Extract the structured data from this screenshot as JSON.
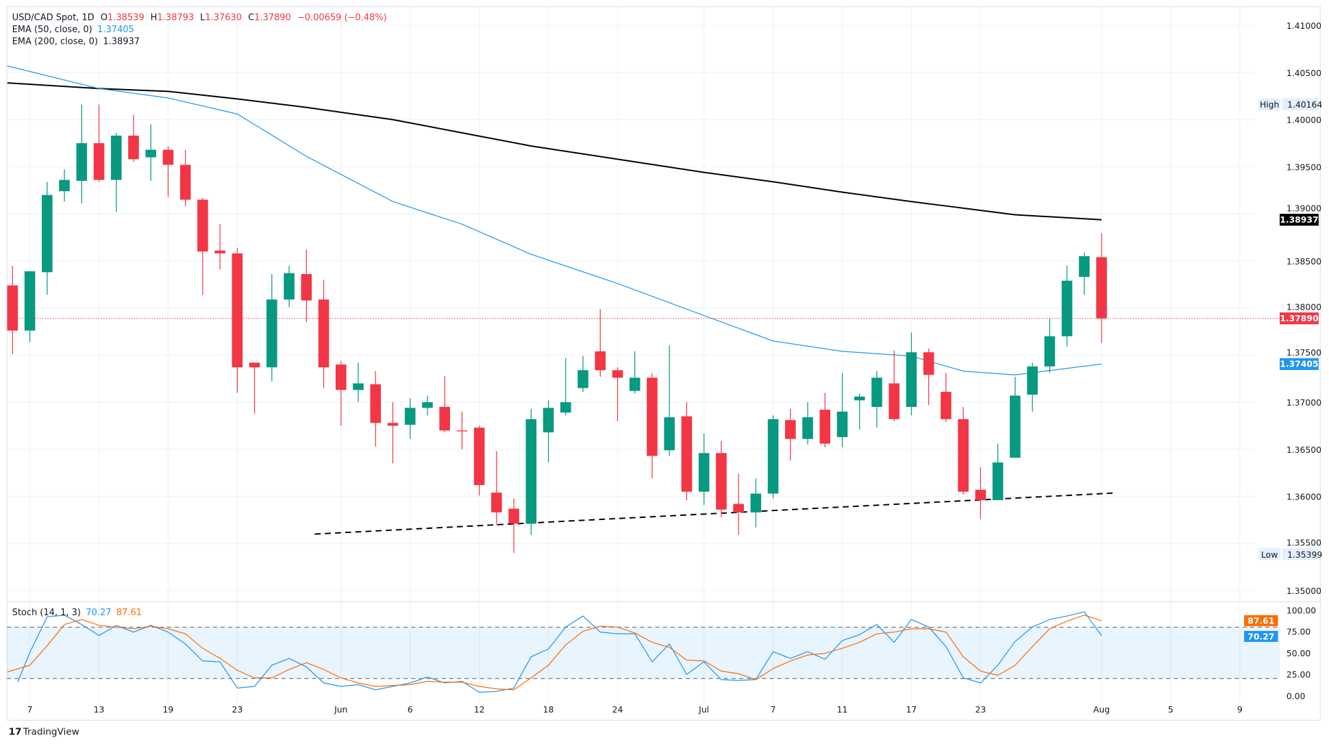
{
  "legend": {
    "symbol": "USD/CAD Spot, 1D",
    "o_label": "O",
    "o": "1.38539",
    "h_label": "H",
    "h": "1.38793",
    "l_label": "L",
    "l": "1.37630",
    "c_label": "C",
    "c": "1.37890",
    "change": "−0.00659 (−0.48%)",
    "ema50_label": "EMA (50, close, 0)",
    "ema50": "1.37405",
    "ema200_label": "EMA (200, close, 0)",
    "ema200": "1.38937",
    "stoch_label": "Stoch (14, 1, 3)",
    "stoch_k": "70.27",
    "stoch_d": "87.61"
  },
  "markers": {
    "high_label": "High",
    "high": "1.40164",
    "low_label": "Low",
    "low": "1.35399",
    "last_price": "1.37890",
    "ema200_tag": "1.38937",
    "ema50_tag": "1.37405",
    "stoch_d_tag": "87.61",
    "stoch_k_tag": "70.27"
  },
  "colors": {
    "up": "#089981",
    "down": "#f23645",
    "ema50": "#2196f3",
    "ema200": "#000000",
    "stoch_k": "#2196f3",
    "stoch_d": "#ff6d00"
  },
  "branding": {
    "logo": "TradingView"
  },
  "chart_data": [
    {
      "type": "candlestick",
      "title": "USD/CAD Spot, 1D",
      "ylim": [
        1.35,
        1.41
      ],
      "yticks": [
        "1.41000",
        "1.40500",
        "1.40000",
        "1.39500",
        "1.39000",
        "1.38500",
        "1.38000",
        "1.37500",
        "1.37000",
        "1.36500",
        "1.36000",
        "1.35500",
        "1.35000"
      ],
      "xticks": [
        "7",
        "13",
        "19",
        "23",
        "Jun",
        "6",
        "12",
        "18",
        "24",
        "Jul",
        "7",
        "11",
        "17",
        "23",
        "Aug",
        "5",
        "9"
      ],
      "grid": true,
      "candles_columns": [
        "date",
        "open",
        "high",
        "low",
        "close"
      ],
      "candles": [
        [
          "May 6",
          1.3824,
          1.3845,
          1.3751,
          1.3776
        ],
        [
          "May 7",
          1.3776,
          1.3839,
          1.3764,
          1.3839
        ],
        [
          "May 8",
          1.3838,
          1.3934,
          1.3814,
          1.392
        ],
        [
          "May 9",
          1.3924,
          1.3947,
          1.3913,
          1.3936
        ],
        [
          "May 12",
          1.3935,
          1.4016,
          1.3911,
          1.3975
        ],
        [
          "May 13",
          1.3975,
          1.4016,
          1.3934,
          1.3936
        ],
        [
          "May 14",
          1.3936,
          1.3986,
          1.3902,
          1.3983
        ],
        [
          "May 15",
          1.3983,
          1.4005,
          1.3955,
          1.3958
        ],
        [
          "May 16",
          1.396,
          1.3995,
          1.3935,
          1.3968
        ],
        [
          "May 19",
          1.3968,
          1.3972,
          1.3918,
          1.3952
        ],
        [
          "May 20",
          1.3952,
          1.3968,
          1.3908,
          1.3915
        ],
        [
          "May 21",
          1.3915,
          1.3917,
          1.3814,
          1.386
        ],
        [
          "May 22",
          1.3861,
          1.3889,
          1.3841,
          1.3858
        ],
        [
          "May 23",
          1.3858,
          1.3864,
          1.371,
          1.3737
        ],
        [
          "May 26",
          1.3742,
          1.3742,
          1.3688,
          1.3737
        ],
        [
          "May 27",
          1.3737,
          1.3836,
          1.3722,
          1.3809
        ],
        [
          "May 28",
          1.3809,
          1.3845,
          1.3801,
          1.3837
        ],
        [
          "May 29",
          1.3836,
          1.3862,
          1.3785,
          1.3808
        ],
        [
          "May 30",
          1.3809,
          1.383,
          1.3715,
          1.3737
        ],
        [
          "Jun 2",
          1.374,
          1.3744,
          1.3675,
          1.3713
        ],
        [
          "Jun 3",
          1.3713,
          1.3742,
          1.37,
          1.372
        ],
        [
          "Jun 4",
          1.3719,
          1.3733,
          1.3653,
          1.3678
        ],
        [
          "Jun 5",
          1.3678,
          1.37,
          1.3635,
          1.3675
        ],
        [
          "Jun 6",
          1.3676,
          1.3704,
          1.3661,
          1.3694
        ],
        [
          "Jun 9",
          1.3694,
          1.3707,
          1.3686,
          1.37
        ],
        [
          "Jun 10",
          1.3695,
          1.3728,
          1.3668,
          1.367
        ],
        [
          "Jun 11",
          1.367,
          1.369,
          1.365,
          1.3669
        ],
        [
          "Jun 12",
          1.3673,
          1.3675,
          1.3601,
          1.3612
        ],
        [
          "Jun 13",
          1.3604,
          1.3648,
          1.3569,
          1.3583
        ],
        [
          "Jun 16",
          1.3587,
          1.3598,
          1.354,
          1.3571
        ],
        [
          "Jun 17",
          1.3571,
          1.3693,
          1.3559,
          1.3682
        ],
        [
          "Jun 18",
          1.3668,
          1.3702,
          1.3636,
          1.3694
        ],
        [
          "Jun 19",
          1.3689,
          1.3747,
          1.3686,
          1.37
        ],
        [
          "Jun 20",
          1.3715,
          1.3749,
          1.3711,
          1.3734
        ],
        [
          "Jun 23",
          1.3754,
          1.3799,
          1.3727,
          1.3734
        ],
        [
          "Jun 24",
          1.3734,
          1.3737,
          1.368,
          1.3726
        ],
        [
          "Jun 25",
          1.3712,
          1.3754,
          1.3709,
          1.3726
        ],
        [
          "Jun 26",
          1.3726,
          1.3731,
          1.3619,
          1.3643
        ],
        [
          "Jun 27",
          1.3649,
          1.376,
          1.3643,
          1.3684
        ],
        [
          "Jun 30",
          1.3685,
          1.37,
          1.3596,
          1.3605
        ],
        [
          "Jul 1",
          1.3605,
          1.3667,
          1.3591,
          1.3646
        ],
        [
          "Jul 2",
          1.3646,
          1.3659,
          1.3578,
          1.3586
        ],
        [
          "Jul 3",
          1.3592,
          1.3624,
          1.3559,
          1.3583
        ],
        [
          "Jul 4",
          1.3583,
          1.3619,
          1.3567,
          1.3603
        ],
        [
          "Jul 7",
          1.3603,
          1.3686,
          1.3598,
          1.3682
        ],
        [
          "Jul 8",
          1.3681,
          1.3693,
          1.3638,
          1.3661
        ],
        [
          "Jul 9",
          1.3661,
          1.37,
          1.3655,
          1.3684
        ],
        [
          "Jul 10",
          1.3692,
          1.371,
          1.3652,
          1.3656
        ],
        [
          "Jul 11",
          1.3663,
          1.3731,
          1.3652,
          1.369
        ],
        [
          "Jul 14",
          1.3702,
          1.3709,
          1.3671,
          1.3706
        ],
        [
          "Jul 15",
          1.3695,
          1.3733,
          1.3673,
          1.3726
        ],
        [
          "Jul 16",
          1.372,
          1.3755,
          1.368,
          1.3682
        ],
        [
          "Jul 17",
          1.3695,
          1.3774,
          1.3686,
          1.3753
        ],
        [
          "Jul 18",
          1.3753,
          1.3757,
          1.3697,
          1.3729
        ],
        [
          "Jul 21",
          1.3711,
          1.3731,
          1.3679,
          1.3682
        ],
        [
          "Jul 22",
          1.3682,
          1.3695,
          1.3602,
          1.3605
        ],
        [
          "Jul 23",
          1.3607,
          1.3631,
          1.3576,
          1.3596
        ],
        [
          "Jul 24",
          1.3596,
          1.3656,
          1.3596,
          1.3636
        ],
        [
          "Jul 25",
          1.3641,
          1.3727,
          1.3641,
          1.3707
        ],
        [
          "Jul 28",
          1.3708,
          1.3742,
          1.369,
          1.3738
        ],
        [
          "Jul 29",
          1.3738,
          1.3789,
          1.3731,
          1.377
        ],
        [
          "Jul 30",
          1.377,
          1.3845,
          1.3759,
          1.3829
        ],
        [
          "Jul 31",
          1.3833,
          1.3859,
          1.3814,
          1.3855
        ],
        [
          "Aug 1",
          1.38539,
          1.38793,
          1.3763,
          1.3789
        ]
      ],
      "ema50": [
        [
          "May 6",
          1.4057
        ],
        [
          "May 13",
          1.4033
        ],
        [
          "May 19",
          1.4023
        ],
        [
          "May 23",
          1.4006
        ],
        [
          "May 29",
          1.3961
        ],
        [
          "Jun 5",
          1.3913
        ],
        [
          "Jun 11",
          1.3889
        ],
        [
          "Jun 17",
          1.3857
        ],
        [
          "Jun 24",
          1.3826
        ],
        [
          "Jul 1",
          1.3792
        ],
        [
          "Jul 7",
          1.3765
        ],
        [
          "Jul 11",
          1.3754
        ],
        [
          "Jul 17",
          1.3749
        ],
        [
          "Jul 22",
          1.3733
        ],
        [
          "Jul 25",
          1.3729
        ],
        [
          "Aug 1",
          1.37405
        ]
      ],
      "ema200": [
        [
          "May 6",
          1.4039
        ],
        [
          "May 13",
          1.4033
        ],
        [
          "May 19",
          1.403
        ],
        [
          "May 23",
          1.4022
        ],
        [
          "May 29",
          1.4013
        ],
        [
          "Jun 5",
          1.4
        ],
        [
          "Jun 11",
          1.3986
        ],
        [
          "Jun 17",
          1.3972
        ],
        [
          "Jun 24",
          1.3958
        ],
        [
          "Jul 1",
          1.3944
        ],
        [
          "Jul 7",
          1.3934
        ],
        [
          "Jul 11",
          1.3923
        ],
        [
          "Jul 17",
          1.3913
        ],
        [
          "Jul 22",
          1.3906
        ],
        [
          "Jul 25",
          1.3899
        ],
        [
          "Aug 1",
          1.38937
        ]
      ],
      "trendline": [
        [
          "May 29",
          1.356
        ],
        [
          "Aug 1",
          1.3603
        ]
      ],
      "last_price_line": 1.3789
    },
    {
      "type": "line",
      "title": "Stoch (14, 1, 3)",
      "ylim": [
        0,
        100
      ],
      "yticks": [
        "100.00",
        "75.00",
        "50.00",
        "25.00",
        "0.00"
      ],
      "band": [
        20,
        80
      ],
      "series": [
        {
          "name": "%K",
          "values": [
            15.8,
            50.5,
            92.1,
            94.1,
            83.2,
            70.3,
            82.2,
            74.3,
            82.2,
            74.3,
            60.4,
            40.6,
            39.6,
            8.9,
            10.9,
            35.6,
            43.6,
            33.7,
            14.9,
            10.9,
            12.9,
            6.9,
            10.9,
            14.9,
            21.8,
            14.9,
            16.8,
            4.0,
            5.0,
            8.9,
            45.5,
            54.5,
            80.2,
            93.1,
            74.3,
            72.3,
            72.3,
            39.6,
            60.4,
            24.8,
            39.6,
            18.8,
            17.8,
            18.8,
            51.5,
            43.6,
            51.5,
            42.6,
            64.4,
            71.3,
            83.2,
            62.4,
            89.1,
            80.2,
            57.4,
            20.8,
            14.9,
            35.6,
            63.4,
            80.2,
            89.1,
            93.1,
            98.0,
            70.27
          ]
        },
        {
          "name": "%D",
          "values": [
            27.7,
            35.6,
            58.4,
            83.2,
            89.1,
            82.2,
            80.2,
            78.2,
            81.2,
            78.2,
            72.3,
            55.4,
            43.6,
            29.7,
            20.8,
            20.8,
            30.7,
            38.6,
            30.7,
            20.8,
            14.9,
            10.9,
            11.9,
            12.9,
            16.8,
            15.8,
            15.8,
            10.9,
            7.9,
            6.9,
            20.8,
            35.6,
            59.4,
            75.2,
            81.2,
            80.2,
            73.3,
            62.4,
            56.4,
            41.6,
            40.6,
            28.7,
            25.7,
            18.8,
            31.7,
            40.6,
            47.5,
            49.5,
            55.4,
            62.4,
            72.3,
            74.3,
            78.2,
            78.2,
            74.3,
            45.5,
            28.7,
            23.8,
            35.6,
            57.4,
            78.2,
            87.1,
            94.1,
            87.61
          ]
        }
      ]
    }
  ]
}
